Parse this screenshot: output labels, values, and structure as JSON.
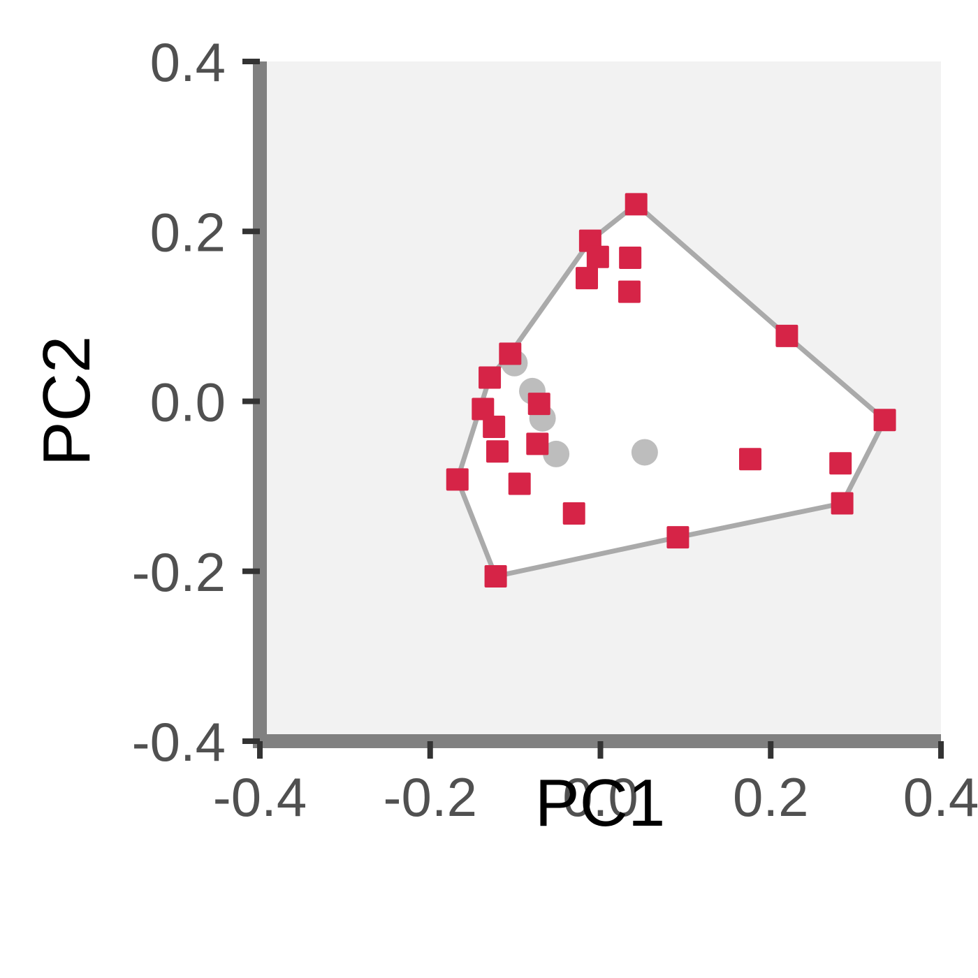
{
  "chart_data": {
    "type": "scatter",
    "xlabel": "PC1",
    "ylabel": "PC2",
    "xlim": [
      -0.4,
      0.4
    ],
    "ylim": [
      -0.4,
      0.4
    ],
    "xticks": [
      -0.4,
      -0.2,
      0.0,
      0.2,
      0.4
    ],
    "yticks": [
      -0.4,
      -0.2,
      0.0,
      0.2,
      0.4
    ],
    "xtick_labels": [
      "-0.4",
      "-0.2",
      "0.0",
      "0.2",
      "0.4"
    ],
    "ytick_labels": [
      "-0.4",
      "-0.2",
      "0.0",
      "0.2",
      "0.4"
    ],
    "grid": false,
    "series": [
      {
        "marker": "circle",
        "color": "#bdbdbd",
        "points": [
          {
            "x": -0.101,
            "y": 0.045
          },
          {
            "x": -0.08,
            "y": 0.012
          },
          {
            "x": -0.068,
            "y": -0.02
          },
          {
            "x": -0.052,
            "y": -0.062
          },
          {
            "x": 0.052,
            "y": -0.06
          }
        ]
      },
      {
        "marker": "square",
        "color": "#d62447",
        "points": [
          {
            "x": 0.042,
            "y": 0.232
          },
          {
            "x": -0.012,
            "y": 0.189
          },
          {
            "x": -0.003,
            "y": 0.17
          },
          {
            "x": 0.035,
            "y": 0.169
          },
          {
            "x": -0.016,
            "y": 0.145
          },
          {
            "x": 0.034,
            "y": 0.129
          },
          {
            "x": 0.219,
            "y": 0.077
          },
          {
            "x": -0.106,
            "y": 0.056
          },
          {
            "x": -0.13,
            "y": 0.028
          },
          {
            "x": -0.072,
            "y": -0.003
          },
          {
            "x": -0.138,
            "y": -0.009
          },
          {
            "x": -0.125,
            "y": -0.03
          },
          {
            "x": -0.074,
            "y": -0.05
          },
          {
            "x": -0.121,
            "y": -0.059
          },
          {
            "x": 0.176,
            "y": -0.068
          },
          {
            "x": 0.282,
            "y": -0.073
          },
          {
            "x": 0.334,
            "y": -0.022
          },
          {
            "x": -0.095,
            "y": -0.097
          },
          {
            "x": -0.168,
            "y": -0.092
          },
          {
            "x": -0.031,
            "y": -0.132
          },
          {
            "x": 0.284,
            "y": -0.12
          },
          {
            "x": 0.091,
            "y": -0.16
          },
          {
            "x": -0.123,
            "y": -0.206
          }
        ]
      }
    ],
    "hull": {
      "color": "#aaaaaa",
      "fill": "#ffffff",
      "points": [
        {
          "x": 0.042,
          "y": 0.232
        },
        {
          "x": 0.219,
          "y": 0.077
        },
        {
          "x": 0.334,
          "y": -0.022
        },
        {
          "x": 0.284,
          "y": -0.12
        },
        {
          "x": 0.091,
          "y": -0.16
        },
        {
          "x": -0.123,
          "y": -0.206
        },
        {
          "x": -0.168,
          "y": -0.092
        },
        {
          "x": -0.13,
          "y": 0.028
        },
        {
          "x": -0.106,
          "y": 0.056
        },
        {
          "x": -0.012,
          "y": 0.189
        }
      ]
    },
    "plot_background": "#f2f2f2",
    "axis_color": "#808080",
    "tick_color": "#333333"
  }
}
